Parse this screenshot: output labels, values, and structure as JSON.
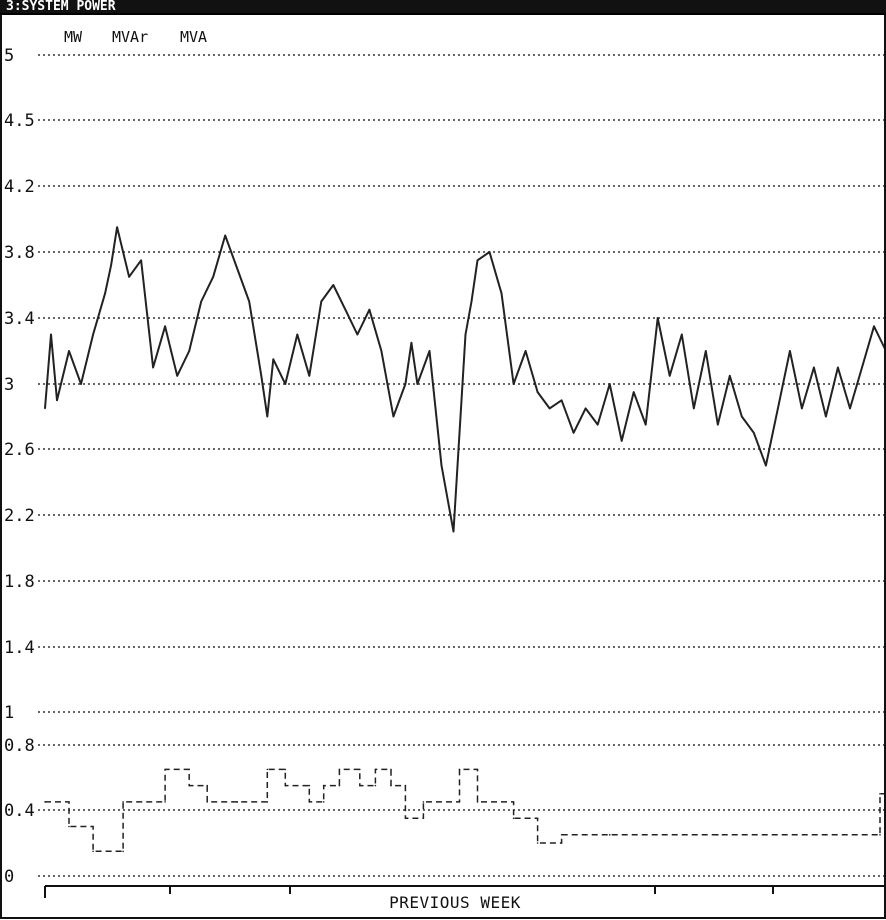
{
  "window": {
    "title": "3:SYSTEM POWER"
  },
  "legend": [
    "MW",
    "MVAr",
    "MVA"
  ],
  "colors": {
    "line": "#222222",
    "grid": "#333333",
    "background": "#ffffff"
  },
  "chart_data": {
    "type": "line",
    "title": "3:SYSTEM POWER",
    "xlabel": "PREVIOUS WEEK",
    "ylabel": "",
    "ylim": [
      0,
      5
    ],
    "yticks": [
      0,
      0.4,
      0.8,
      1,
      1.4,
      1.8,
      2.2,
      2.6,
      3,
      3.4,
      3.8,
      4.2,
      4.5,
      5
    ],
    "ytick_labels": [
      "0",
      "0.4",
      "0.8",
      "1",
      "1.4",
      "1.8",
      "2.2",
      "2.6",
      "3",
      "3.4",
      "3.8",
      "4.2",
      "4.5",
      "5"
    ],
    "xlim": [
      0,
      7
    ],
    "grid": true,
    "series": [
      {
        "name": "MW",
        "style": "solid",
        "x": [
          0.0,
          0.05,
          0.1,
          0.2,
          0.3,
          0.4,
          0.5,
          0.55,
          0.6,
          0.7,
          0.8,
          0.9,
          1.0,
          1.05,
          1.1,
          1.2,
          1.3,
          1.4,
          1.5,
          1.6,
          1.7,
          1.8,
          1.85,
          1.9,
          2.0,
          2.1,
          2.2,
          2.3,
          2.4,
          2.5,
          2.6,
          2.7,
          2.8,
          2.9,
          3.0,
          3.05,
          3.1,
          3.2,
          3.3,
          3.4,
          3.5,
          3.55,
          3.6,
          3.7,
          3.8,
          3.9,
          4.0,
          4.1,
          4.2,
          4.3,
          4.4,
          4.5,
          4.6,
          4.7,
          4.8,
          4.9,
          5.0,
          5.1,
          5.2,
          5.3,
          5.4,
          5.5,
          5.6,
          5.7,
          5.8,
          5.9,
          6.0,
          6.1,
          6.2,
          6.3,
          6.4,
          6.5,
          6.6,
          6.7,
          6.8,
          6.9,
          7.0
        ],
        "values": [
          2.85,
          3.3,
          2.9,
          3.2,
          3.0,
          3.3,
          3.55,
          3.72,
          3.95,
          3.65,
          3.75,
          3.1,
          3.35,
          3.2,
          3.05,
          3.2,
          3.5,
          3.65,
          3.9,
          3.7,
          3.5,
          3.05,
          2.8,
          3.15,
          3.0,
          3.3,
          3.05,
          3.5,
          3.6,
          3.45,
          3.3,
          3.45,
          3.2,
          2.8,
          3.0,
          3.25,
          3.0,
          3.2,
          2.5,
          2.1,
          3.3,
          3.5,
          3.75,
          3.8,
          3.55,
          3.0,
          3.2,
          2.95,
          2.85,
          2.9,
          2.7,
          2.85,
          2.75,
          3.0,
          2.65,
          2.95,
          2.75,
          3.4,
          3.05,
          3.3,
          2.85,
          3.2,
          2.75,
          3.05,
          2.8,
          2.7,
          2.5,
          2.85,
          3.2,
          2.85,
          3.1,
          2.8,
          3.1,
          2.85,
          3.1,
          3.35,
          3.2
        ]
      },
      {
        "name": "MVAr",
        "style": "dashed",
        "x": [
          0.0,
          0.2,
          0.2,
          0.4,
          0.4,
          0.65,
          0.65,
          1.0,
          1.0,
          1.2,
          1.2,
          1.35,
          1.35,
          1.6,
          1.6,
          1.85,
          1.85,
          2.0,
          2.0,
          2.2,
          2.2,
          2.32,
          2.32,
          2.45,
          2.45,
          2.62,
          2.62,
          2.75,
          2.75,
          2.88,
          2.88,
          3.0,
          3.0,
          3.15,
          3.15,
          3.45,
          3.45,
          3.6,
          3.6,
          3.9,
          3.9,
          4.1,
          4.1,
          4.3,
          4.3,
          4.5,
          4.5,
          4.7,
          4.7,
          5.0,
          5.0,
          5.6,
          5.6,
          6.0,
          6.0,
          6.5,
          6.5,
          6.95,
          6.95,
          7.0
        ],
        "values": [
          0.45,
          0.45,
          0.3,
          0.3,
          0.15,
          0.15,
          0.45,
          0.45,
          0.65,
          0.65,
          0.55,
          0.55,
          0.45,
          0.45,
          0.45,
          0.45,
          0.65,
          0.65,
          0.55,
          0.55,
          0.45,
          0.45,
          0.55,
          0.55,
          0.65,
          0.65,
          0.55,
          0.55,
          0.65,
          0.65,
          0.55,
          0.55,
          0.35,
          0.35,
          0.45,
          0.45,
          0.65,
          0.65,
          0.45,
          0.45,
          0.35,
          0.35,
          0.2,
          0.2,
          0.25,
          0.25,
          0.25,
          0.25,
          0.25,
          0.25,
          0.25,
          0.25,
          0.25,
          0.25,
          0.25,
          0.25,
          0.25,
          0.25,
          0.5,
          0.5
        ]
      }
    ]
  }
}
